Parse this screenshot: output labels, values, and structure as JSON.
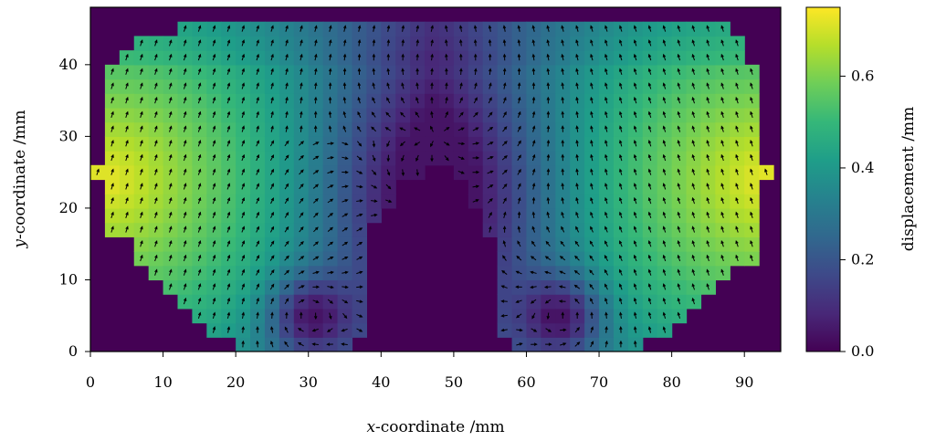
{
  "chart_data": {
    "type": "heatmap",
    "subtype": "displacement-field-with-quiver",
    "title": "",
    "xlabel_var": "x",
    "xlabel_rest": "-coordinate /mm",
    "ylabel_var": "y",
    "ylabel_rest": "-coordinate /mm",
    "xlim": [
      0,
      95
    ],
    "ylim": [
      0,
      48
    ],
    "xticks": [
      0,
      10,
      20,
      30,
      40,
      50,
      60,
      70,
      80,
      90
    ],
    "xtick_labels": [
      "0",
      "10",
      "20",
      "30",
      "40",
      "50",
      "60",
      "70",
      "80",
      "90"
    ],
    "yticks": [
      0,
      10,
      20,
      30,
      40
    ],
    "ytick_labels": [
      "0",
      "10",
      "20",
      "30",
      "40"
    ],
    "grid": false,
    "colorbar": {
      "label": "displacement /mm",
      "colormap": "viridis",
      "range": [
        0,
        0.75
      ],
      "ticks": [
        0.0,
        0.2,
        0.4,
        0.6
      ],
      "tick_labels": [
        "0.0",
        "0.2",
        "0.4",
        "0.6"
      ]
    },
    "field": {
      "cell_size_mm": 2,
      "background_value": 0,
      "outer_boundary": [
        [
          2,
          26
        ],
        [
          2,
          40
        ],
        [
          4,
          40
        ],
        [
          4,
          42
        ],
        [
          6,
          42
        ],
        [
          6,
          45
        ],
        [
          12,
          45
        ],
        [
          12,
          46
        ],
        [
          30,
          46
        ],
        [
          30,
          47
        ],
        [
          84,
          47
        ],
        [
          84,
          46
        ],
        [
          88,
          46
        ],
        [
          88,
          45
        ],
        [
          91,
          45
        ],
        [
          91,
          40
        ],
        [
          93,
          40
        ],
        [
          93,
          26
        ],
        [
          95,
          26
        ],
        [
          95,
          24
        ],
        [
          92,
          24
        ],
        [
          92,
          12
        ],
        [
          88,
          12
        ],
        [
          88,
          10
        ],
        [
          86,
          10
        ],
        [
          86,
          8
        ],
        [
          84,
          8
        ],
        [
          84,
          6
        ],
        [
          82,
          6
        ],
        [
          82,
          4
        ],
        [
          80,
          4
        ],
        [
          80,
          2
        ],
        [
          76,
          2
        ],
        [
          76,
          0
        ],
        [
          32,
          0
        ],
        [
          32,
          1
        ],
        [
          20,
          1
        ],
        [
          20,
          2
        ],
        [
          16,
          2
        ],
        [
          16,
          4
        ],
        [
          14,
          4
        ],
        [
          14,
          6
        ],
        [
          12,
          6
        ],
        [
          12,
          8
        ],
        [
          10,
          8
        ],
        [
          10,
          10
        ],
        [
          8,
          10
        ],
        [
          8,
          12
        ],
        [
          6,
          12
        ],
        [
          6,
          16
        ],
        [
          3,
          16
        ],
        [
          3,
          24
        ],
        [
          0,
          24
        ],
        [
          0,
          26
        ]
      ],
      "hole_boundary": [
        [
          32,
          0
        ],
        [
          36,
          0
        ],
        [
          36,
          3
        ],
        [
          38,
          3
        ],
        [
          38,
          18
        ],
        [
          40,
          18
        ],
        [
          40,
          21
        ],
        [
          42,
          21
        ],
        [
          42,
          24
        ],
        [
          46,
          24
        ],
        [
          46,
          26
        ],
        [
          50,
          26
        ],
        [
          50,
          24
        ],
        [
          53,
          24
        ],
        [
          53,
          21
        ],
        [
          55,
          21
        ],
        [
          55,
          16
        ],
        [
          57,
          16
        ],
        [
          57,
          3
        ],
        [
          59,
          3
        ],
        [
          59,
          0
        ],
        [
          63,
          0
        ],
        [
          63,
          -1
        ],
        [
          32,
          -1
        ]
      ],
      "peak_left": {
        "x": 2,
        "y": 24,
        "value": 0.73
      },
      "peak_right": {
        "x": 93,
        "y": 24,
        "value": 0.73
      },
      "vortex_left": {
        "x": 30,
        "y": 5
      },
      "vortex_right": {
        "x": 65,
        "y": 5
      },
      "quiver_spacing_mm": 2
    }
  }
}
